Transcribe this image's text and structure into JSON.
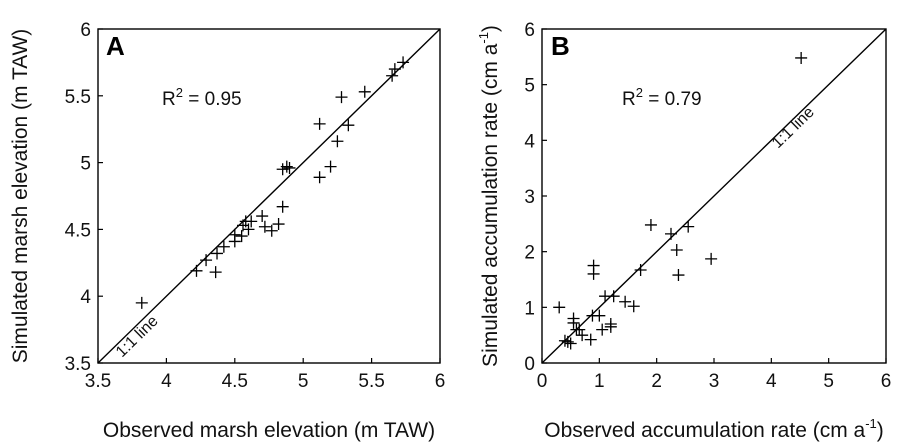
{
  "chart_data": [
    {
      "type": "scatter",
      "panel_label": "A",
      "xlabel": "Observed marsh elevation (m TAW)",
      "ylabel": "Simulated marsh elevation (m TAW)",
      "xlim": [
        3.5,
        6
      ],
      "ylim": [
        3.5,
        6
      ],
      "xticks": [
        "3.5",
        "4",
        "4.5",
        "5",
        "5.5",
        "6"
      ],
      "yticks": [
        "3.5",
        "4",
        "4.5",
        "5",
        "5.5",
        "6"
      ],
      "r2_label": "R",
      "r2_sup": "2",
      "r2_value": " = 0.95",
      "one_to_one_label": "1:1 line",
      "marker": "+",
      "points": [
        [
          3.82,
          3.95
        ],
        [
          4.22,
          4.19
        ],
        [
          4.29,
          4.27
        ],
        [
          4.36,
          4.18
        ],
        [
          4.37,
          4.32
        ],
        [
          4.42,
          4.37
        ],
        [
          4.5,
          4.41
        ],
        [
          4.5,
          4.46
        ],
        [
          4.55,
          4.45
        ],
        [
          4.56,
          4.53
        ],
        [
          4.58,
          4.56
        ],
        [
          4.6,
          4.5
        ],
        [
          4.62,
          4.56
        ],
        [
          4.7,
          4.6
        ],
        [
          4.72,
          4.52
        ],
        [
          4.77,
          4.49
        ],
        [
          4.82,
          4.54
        ],
        [
          4.85,
          4.67
        ],
        [
          4.85,
          4.95
        ],
        [
          4.88,
          4.97
        ],
        [
          4.9,
          4.96
        ],
        [
          5.12,
          5.29
        ],
        [
          5.12,
          4.89
        ],
        [
          5.2,
          4.97
        ],
        [
          5.25,
          5.16
        ],
        [
          5.28,
          5.49
        ],
        [
          5.33,
          5.28
        ],
        [
          5.45,
          5.53
        ],
        [
          5.65,
          5.65
        ],
        [
          5.67,
          5.7
        ],
        [
          5.73,
          5.75
        ]
      ]
    },
    {
      "type": "scatter",
      "panel_label": "B",
      "xlabel_main": "Observed accumulation rate (cm a",
      "xlabel_sup": "-1",
      "xlabel_end": ")",
      "ylabel_main": "Simulated accumulation rate (cm a",
      "ylabel_sup": "-1",
      "ylabel_end": ")",
      "xlim": [
        0,
        6
      ],
      "ylim": [
        0,
        6
      ],
      "xticks": [
        "0",
        "1",
        "2",
        "3",
        "4",
        "5",
        "6"
      ],
      "yticks": [
        "0",
        "1",
        "2",
        "3",
        "4",
        "5",
        "6"
      ],
      "r2_label": "R",
      "r2_sup": "2",
      "r2_value": " = 0.79",
      "one_to_one_label": "1:1 line",
      "marker": "+",
      "points": [
        [
          0.3,
          1.0
        ],
        [
          0.4,
          0.4
        ],
        [
          0.45,
          0.38
        ],
        [
          0.5,
          0.35
        ],
        [
          0.55,
          0.8
        ],
        [
          0.55,
          0.72
        ],
        [
          0.6,
          0.6
        ],
        [
          0.65,
          0.6
        ],
        [
          0.7,
          0.5
        ],
        [
          0.85,
          0.42
        ],
        [
          0.88,
          0.85
        ],
        [
          0.9,
          1.75
        ],
        [
          0.9,
          1.6
        ],
        [
          1.0,
          0.85
        ],
        [
          1.05,
          0.6
        ],
        [
          1.1,
          1.2
        ],
        [
          1.2,
          0.7
        ],
        [
          1.2,
          0.65
        ],
        [
          1.25,
          1.2
        ],
        [
          1.45,
          1.1
        ],
        [
          1.6,
          1.02
        ],
        [
          1.72,
          1.67
        ],
        [
          1.9,
          2.48
        ],
        [
          2.25,
          2.32
        ],
        [
          2.35,
          2.03
        ],
        [
          2.38,
          1.58
        ],
        [
          2.55,
          2.45
        ],
        [
          2.95,
          1.87
        ],
        [
          4.52,
          5.48
        ]
      ]
    }
  ]
}
